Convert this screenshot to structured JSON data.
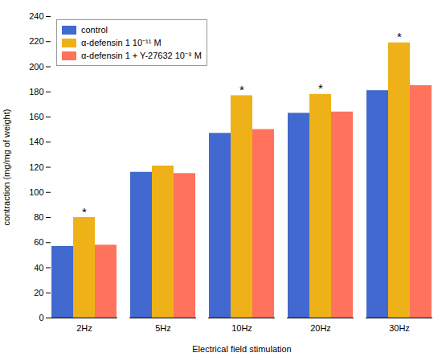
{
  "chart_data": {
    "type": "bar",
    "categories": [
      "2Hz",
      "5Hz",
      "10Hz",
      "20Hz",
      "30Hz"
    ],
    "series": [
      {
        "name": "control",
        "values": [
          57,
          116,
          147,
          163,
          181
        ]
      },
      {
        "name": "α-defensin 1 10⁻¹¹ M",
        "values": [
          80,
          121,
          177,
          178,
          219
        ]
      },
      {
        "name": "α-defensin 1 + Y-27632 10⁻⁹ M",
        "values": [
          58,
          115,
          150,
          164,
          185
        ]
      }
    ],
    "annotations": [
      {
        "text": "*",
        "category": "2Hz",
        "series": "α-defensin 1 10⁻¹¹ M",
        "value": 80
      },
      {
        "text": "*",
        "category": "10Hz",
        "series": "α-defensin 1 10⁻¹¹ M",
        "value": 177
      },
      {
        "text": "*",
        "category": "20Hz",
        "series": "α-defensin 1 10⁻¹¹ M",
        "value": 178
      },
      {
        "text": "*",
        "category": "30Hz",
        "series": "α-defensin 1 10⁻¹¹ M",
        "value": 219
      }
    ],
    "xlabel": "Electrical field stimulation",
    "ylabel": "contraction (mg/mg of weight)",
    "ylim": [
      0,
      240
    ],
    "yticks": [
      0,
      20,
      40,
      60,
      80,
      100,
      120,
      140,
      160,
      180,
      200,
      220,
      240
    ],
    "grid": false,
    "legend": "upper left"
  }
}
